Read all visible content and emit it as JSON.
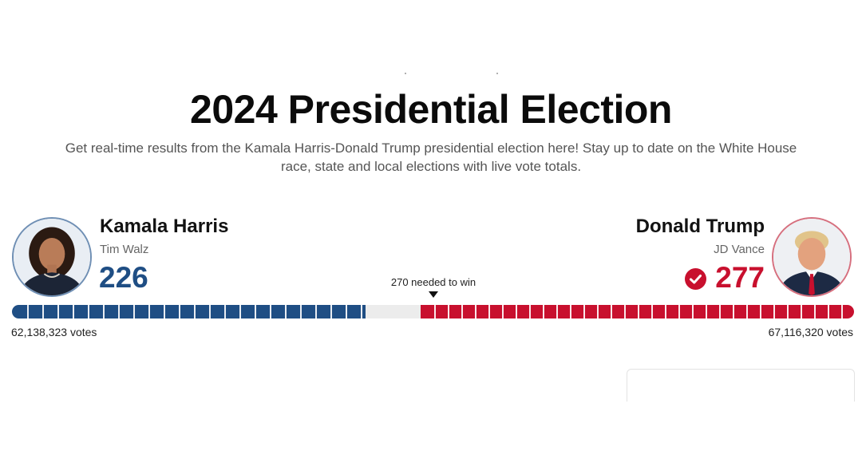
{
  "headline": "2024 Presidential Election",
  "subhead": "Get real-time results from the Kamala Harris-Donald Trump presidential election here! Stay up to date on the White House race, state and local elections with live vote totals.",
  "needed_label": "270 needed to win",
  "colors": {
    "democrat": "#1f4e84",
    "republican": "#c8102e",
    "uncalled": "#ececec"
  },
  "candidates": {
    "left": {
      "name": "Kamala Harris",
      "running_mate": "Tim Walz",
      "electoral_votes": "226",
      "popular_votes": "62,138,323 votes",
      "winner": false
    },
    "right": {
      "name": "Donald Trump",
      "running_mate": "JD Vance",
      "electoral_votes": "277",
      "popular_votes": "67,116,320 votes",
      "winner": true,
      "winner_icon": "check-circle-icon"
    }
  }
}
